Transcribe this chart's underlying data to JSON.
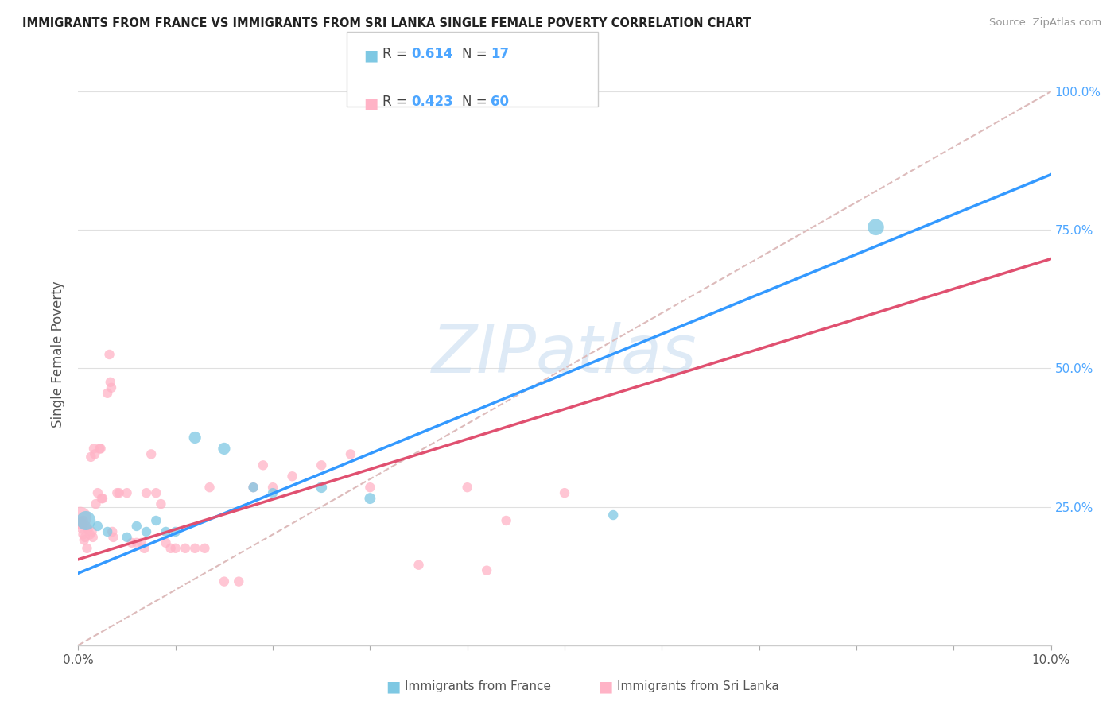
{
  "title": "IMMIGRANTS FROM FRANCE VS IMMIGRANTS FROM SRI LANKA SINGLE FEMALE POVERTY CORRELATION CHART",
  "source": "Source: ZipAtlas.com",
  "ylabel": "Single Female Poverty",
  "xlim": [
    0.0,
    0.1
  ],
  "ylim": [
    0.0,
    1.05
  ],
  "ytick_labels": [
    "",
    "25.0%",
    "50.0%",
    "75.0%",
    "100.0%"
  ],
  "ytick_values": [
    0.0,
    0.25,
    0.5,
    0.75,
    1.0
  ],
  "xtick_labels": [
    "0.0%",
    "",
    "",
    "",
    "",
    "",
    "",
    "",
    "",
    "",
    "10.0%"
  ],
  "xtick_values": [
    0.0,
    0.01,
    0.02,
    0.03,
    0.04,
    0.05,
    0.06,
    0.07,
    0.08,
    0.09,
    0.1
  ],
  "france_R": 0.614,
  "france_N": 17,
  "srilanka_R": 0.423,
  "srilanka_N": 60,
  "france_color": "#7ec8e3",
  "srilanka_color": "#ffb3c6",
  "france_line_color": "#3399ff",
  "srilanka_line_color": "#e05070",
  "diagonal_color": "#ddbbbb",
  "watermark_color": "#c8dcf0",
  "watermark": "ZIPatlas",
  "france_line_x0": 0.0,
  "france_line_y0": 0.13,
  "france_line_x1": 0.1,
  "france_line_y1": 0.85,
  "srilanka_line_x0": 0.0,
  "srilanka_line_y0": 0.155,
  "srilanka_line_x1": 0.035,
  "srilanka_line_y1": 0.345,
  "france_points": [
    [
      0.0008,
      0.225
    ],
    [
      0.002,
      0.215
    ],
    [
      0.003,
      0.205
    ],
    [
      0.005,
      0.195
    ],
    [
      0.006,
      0.215
    ],
    [
      0.007,
      0.205
    ],
    [
      0.008,
      0.225
    ],
    [
      0.009,
      0.205
    ],
    [
      0.01,
      0.205
    ],
    [
      0.012,
      0.375
    ],
    [
      0.015,
      0.355
    ],
    [
      0.018,
      0.285
    ],
    [
      0.02,
      0.275
    ],
    [
      0.025,
      0.285
    ],
    [
      0.03,
      0.265
    ],
    [
      0.055,
      0.235
    ],
    [
      0.082,
      0.755
    ]
  ],
  "france_sizes": [
    300,
    80,
    80,
    80,
    80,
    80,
    80,
    80,
    80,
    120,
    120,
    80,
    80,
    100,
    100,
    80,
    220
  ],
  "srilanka_points": [
    [
      0.0002,
      0.23
    ],
    [
      0.0003,
      0.22
    ],
    [
      0.0004,
      0.21
    ],
    [
      0.0005,
      0.2
    ],
    [
      0.0005,
      0.225
    ],
    [
      0.0006,
      0.19
    ],
    [
      0.0007,
      0.195
    ],
    [
      0.0008,
      0.215
    ],
    [
      0.0009,
      0.175
    ],
    [
      0.001,
      0.21
    ],
    [
      0.0012,
      0.2
    ],
    [
      0.0013,
      0.34
    ],
    [
      0.0014,
      0.205
    ],
    [
      0.0015,
      0.195
    ],
    [
      0.0016,
      0.355
    ],
    [
      0.0017,
      0.345
    ],
    [
      0.0018,
      0.255
    ],
    [
      0.002,
      0.275
    ],
    [
      0.0022,
      0.355
    ],
    [
      0.0023,
      0.355
    ],
    [
      0.0024,
      0.265
    ],
    [
      0.0025,
      0.265
    ],
    [
      0.003,
      0.455
    ],
    [
      0.0032,
      0.525
    ],
    [
      0.0033,
      0.475
    ],
    [
      0.0034,
      0.465
    ],
    [
      0.0035,
      0.205
    ],
    [
      0.0036,
      0.195
    ],
    [
      0.004,
      0.275
    ],
    [
      0.0042,
      0.275
    ],
    [
      0.005,
      0.275
    ],
    [
      0.0055,
      0.185
    ],
    [
      0.006,
      0.185
    ],
    [
      0.0065,
      0.185
    ],
    [
      0.0068,
      0.175
    ],
    [
      0.007,
      0.275
    ],
    [
      0.0075,
      0.345
    ],
    [
      0.008,
      0.275
    ],
    [
      0.0085,
      0.255
    ],
    [
      0.009,
      0.185
    ],
    [
      0.0095,
      0.175
    ],
    [
      0.01,
      0.175
    ],
    [
      0.011,
      0.175
    ],
    [
      0.012,
      0.175
    ],
    [
      0.013,
      0.175
    ],
    [
      0.0135,
      0.285
    ],
    [
      0.015,
      0.115
    ],
    [
      0.0165,
      0.115
    ],
    [
      0.018,
      0.285
    ],
    [
      0.019,
      0.325
    ],
    [
      0.02,
      0.285
    ],
    [
      0.022,
      0.305
    ],
    [
      0.025,
      0.325
    ],
    [
      0.028,
      0.345
    ],
    [
      0.03,
      0.285
    ],
    [
      0.035,
      0.145
    ],
    [
      0.04,
      0.285
    ],
    [
      0.042,
      0.135
    ],
    [
      0.044,
      0.225
    ],
    [
      0.05,
      0.275
    ]
  ],
  "srilanka_sizes": [
    400,
    120,
    80,
    80,
    80,
    80,
    80,
    80,
    80,
    80,
    80,
    80,
    80,
    80,
    80,
    80,
    80,
    80,
    80,
    80,
    80,
    80,
    80,
    80,
    80,
    80,
    80,
    80,
    80,
    80,
    80,
    80,
    80,
    80,
    80,
    80,
    80,
    80,
    80,
    80,
    80,
    80,
    80,
    80,
    80,
    80,
    80,
    80,
    80,
    80,
    80,
    80,
    80,
    80,
    80,
    80,
    80,
    80,
    80,
    80
  ]
}
